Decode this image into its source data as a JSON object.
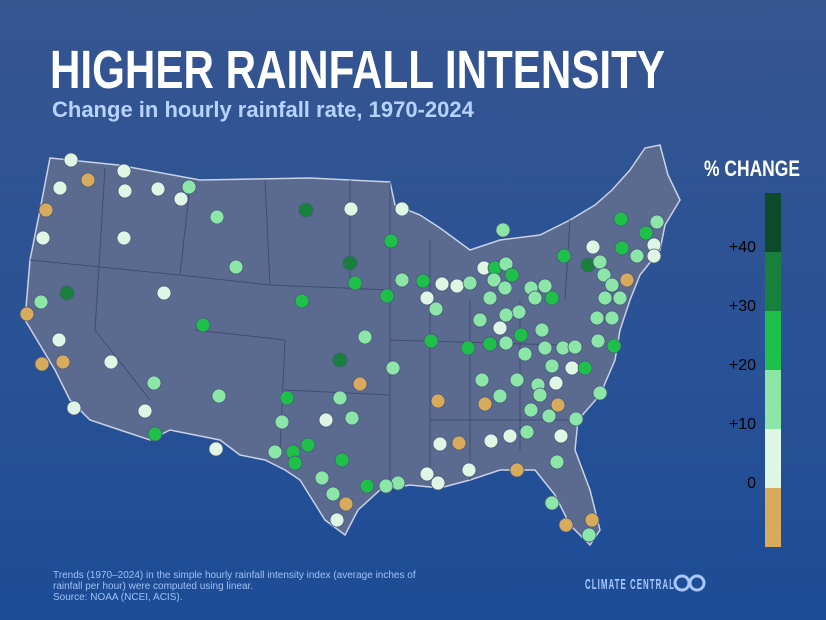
{
  "header": {
    "title": "HIGHER RAINFALL INTENSITY",
    "subtitle": "Change in hourly rainfall rate, 1970-2024"
  },
  "legend": {
    "title": "% CHANGE",
    "labels": [
      "+40",
      "+30",
      "+20",
      "+10",
      "0"
    ],
    "colors": [
      "#0b4a2b",
      "#17803a",
      "#1fc04a",
      "#8ce6a8",
      "#def6e3",
      "#d8aa5c"
    ]
  },
  "footnote": {
    "lines": [
      "Trends (1970–2024) in the simple hourly rainfall intensity index (average inches of",
      "rainfall per hour) were computed using linear.",
      "Source: NOAA (NCEI, ACIS)."
    ]
  },
  "brand": "CLIMATE CENTRAL"
}
